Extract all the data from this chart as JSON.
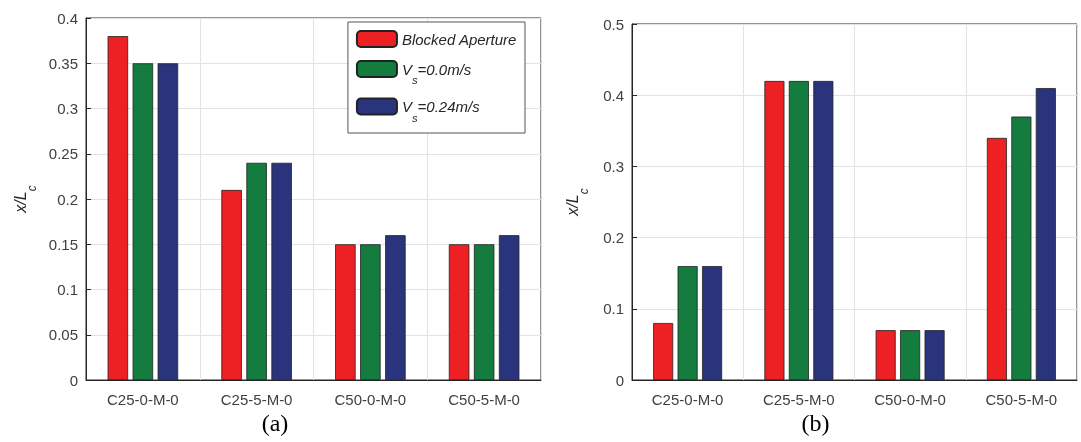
{
  "chart_data": [
    {
      "type": "bar",
      "title": "(a)",
      "ylabel": "x/L$_{c}$",
      "categories": [
        "C25-0-M-0",
        "C25-5-M-0",
        "C50-0-M-0",
        "C50-5-M-0"
      ],
      "series": [
        {
          "name": "Blocked Aperture",
          "color": "#ed2024",
          "values": [
            0.38,
            0.21,
            0.15,
            0.15
          ]
        },
        {
          "name": "V$_{s}$=0.0m/s",
          "color": "#137c3e",
          "values": [
            0.35,
            0.24,
            0.15,
            0.15
          ]
        },
        {
          "name": "V$_{s}$=0.24m/s",
          "color": "#2a347c",
          "values": [
            0.35,
            0.24,
            0.16,
            0.16
          ]
        }
      ],
      "ylim": [
        0,
        0.4
      ],
      "yticks": [
        0,
        0.05,
        0.1,
        0.15,
        0.2,
        0.25,
        0.3,
        0.35,
        0.4
      ],
      "grid": true,
      "legend": "top right"
    },
    {
      "type": "bar",
      "title": "(b)",
      "ylabel": "x/L$_{c}$",
      "categories": [
        "C25-0-M-0",
        "C25-5-M-0",
        "C50-0-M-0",
        "C50-5-M-0"
      ],
      "series": [
        {
          "color": "#ed2024",
          "values": [
            0.08,
            0.42,
            0.07,
            0.34
          ]
        },
        {
          "color": "#137c3e",
          "values": [
            0.16,
            0.42,
            0.07,
            0.37
          ]
        },
        {
          "color": "#2a347c",
          "values": [
            0.16,
            0.42,
            0.07,
            0.41
          ]
        }
      ],
      "ylim": [
        0,
        0.5
      ],
      "yticks": [
        0,
        0.1,
        0.2,
        0.3,
        0.4,
        0.5
      ],
      "grid": true
    }
  ]
}
